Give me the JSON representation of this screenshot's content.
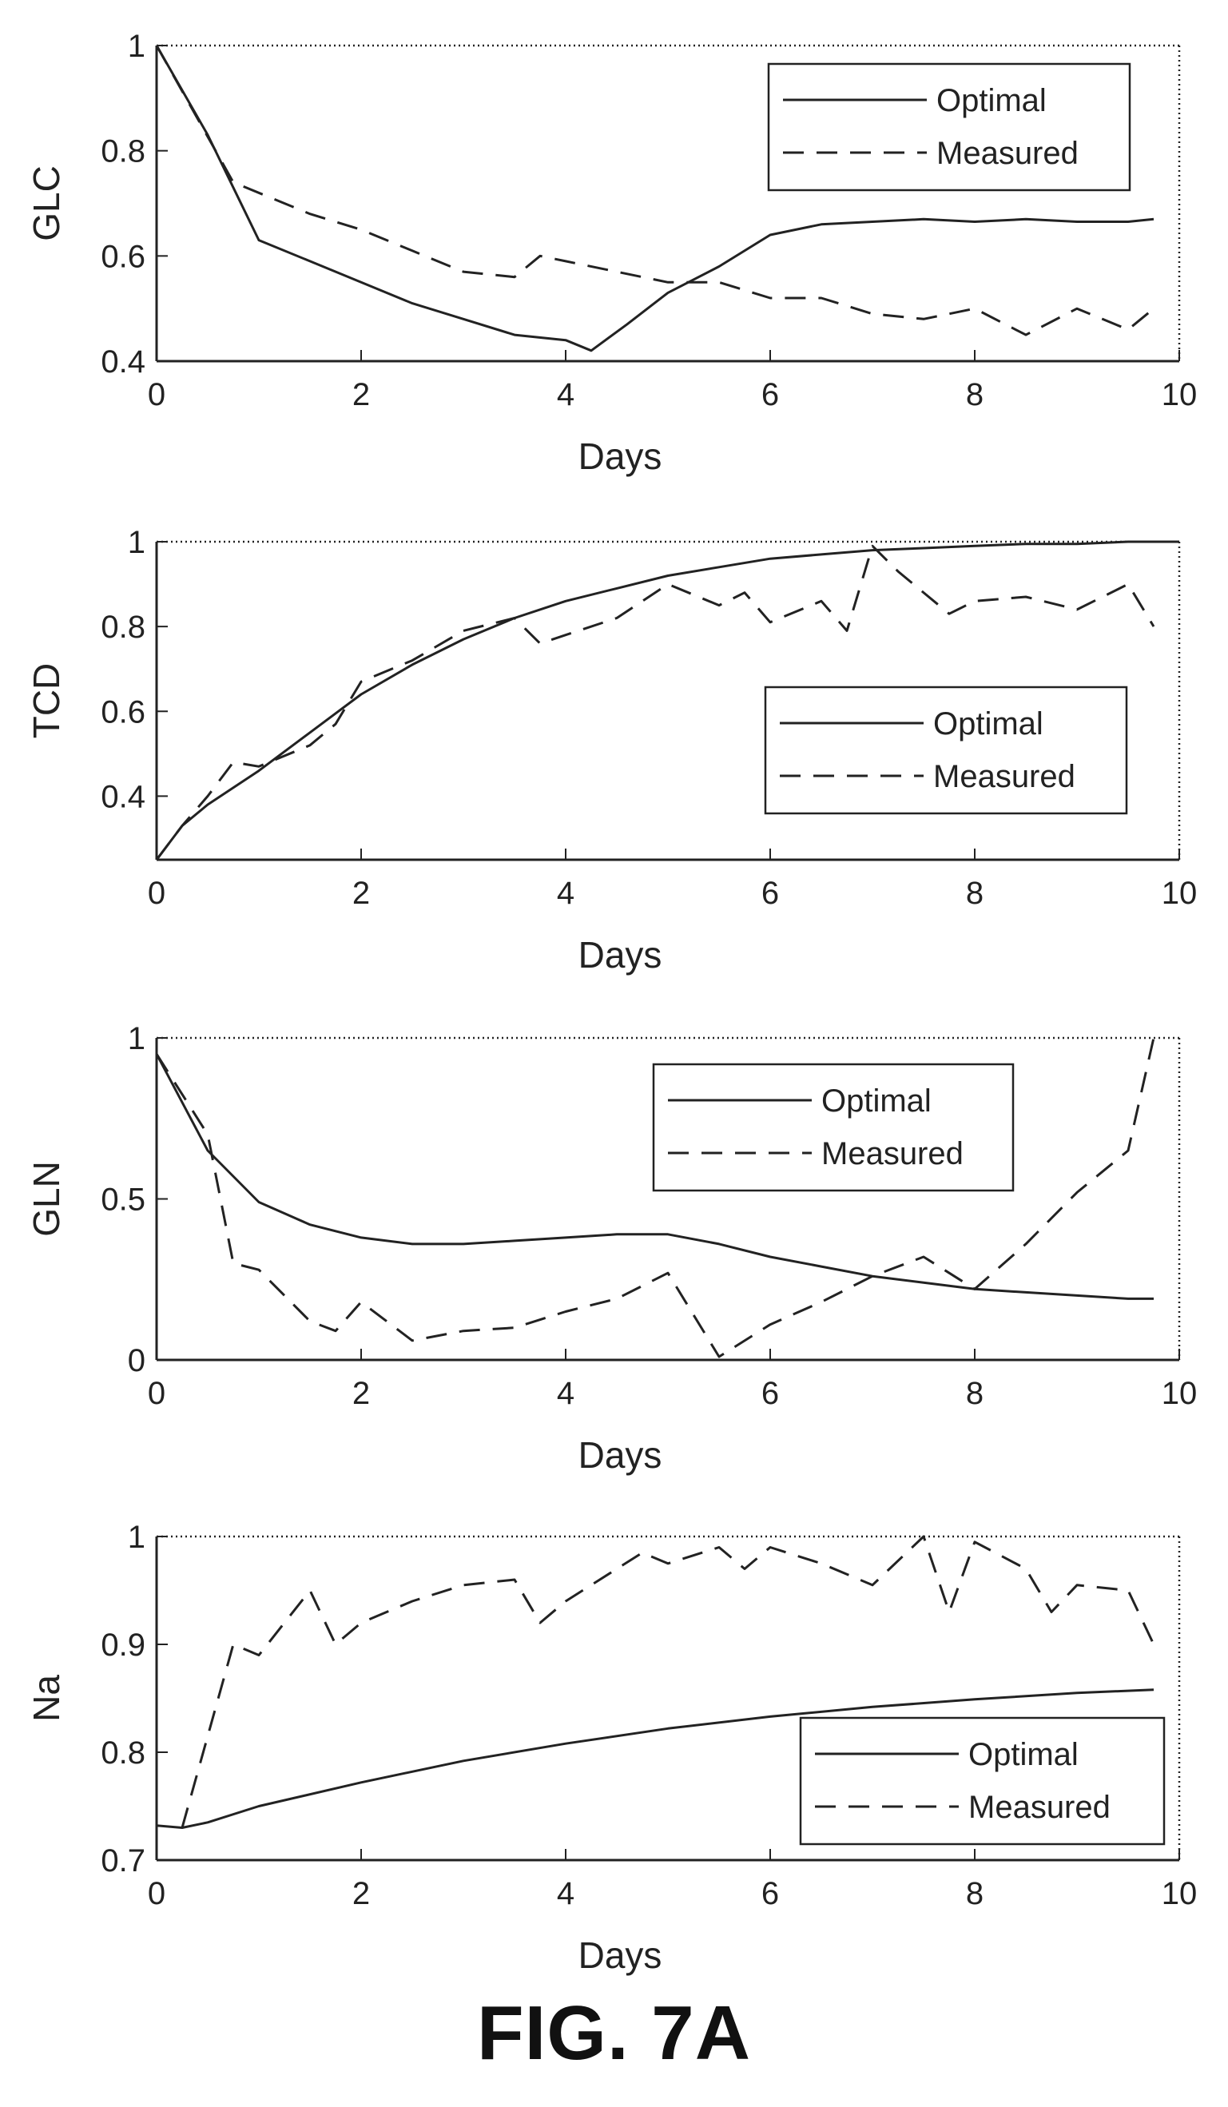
{
  "figure_label": "FIG. 7A",
  "colors": {
    "line": "#222222",
    "axes": "#222222",
    "background": "#ffffff"
  },
  "chart_data": [
    {
      "type": "line",
      "xlabel": "Days",
      "ylabel": "GLC",
      "xlim": [
        0,
        10
      ],
      "ylim": [
        0.4,
        1
      ],
      "xticks": [
        0,
        2,
        4,
        6,
        8,
        10
      ],
      "yticks": [
        0.4,
        0.6,
        0.8,
        1
      ],
      "ytick_labels": [
        "0.4",
        "0.6",
        "0.8",
        "1"
      ],
      "legend_position": "top-right",
      "series": [
        {
          "name": "Optimal",
          "style": "solid",
          "x": [
            0,
            0.5,
            1,
            1.5,
            2,
            2.5,
            3,
            3.5,
            4,
            4.25,
            4.6,
            5,
            5.5,
            6,
            6.5,
            7,
            7.5,
            8,
            8.5,
            9,
            9.5,
            9.75
          ],
          "y": [
            1,
            0.83,
            0.63,
            0.59,
            0.55,
            0.51,
            0.48,
            0.45,
            0.44,
            0.42,
            0.47,
            0.53,
            0.58,
            0.64,
            0.66,
            0.665,
            0.67,
            0.665,
            0.67,
            0.665,
            0.665,
            0.67
          ]
        },
        {
          "name": "Measured",
          "style": "dashed",
          "x": [
            0,
            0.75,
            1.5,
            2,
            2.5,
            3,
            3.5,
            3.75,
            4,
            4.5,
            5,
            5.5,
            6,
            6.5,
            7,
            7.5,
            8,
            8.5,
            9,
            9.5,
            9.75
          ],
          "y": [
            1,
            0.74,
            0.68,
            0.65,
            0.61,
            0.57,
            0.56,
            0.6,
            0.59,
            0.57,
            0.55,
            0.55,
            0.52,
            0.52,
            0.49,
            0.48,
            0.5,
            0.45,
            0.5,
            0.46,
            0.5
          ]
        }
      ]
    },
    {
      "type": "line",
      "xlabel": "Days",
      "ylabel": "TCD",
      "xlim": [
        0,
        10
      ],
      "ylim": [
        0.25,
        1
      ],
      "xticks": [
        0,
        2,
        4,
        6,
        8,
        10
      ],
      "yticks": [
        0.4,
        0.6,
        0.8,
        1
      ],
      "ytick_labels": [
        "0.4",
        "0.6",
        "0.8",
        "1"
      ],
      "legend_position": "middle-right",
      "series": [
        {
          "name": "Optimal",
          "style": "solid",
          "x": [
            0,
            0.25,
            0.5,
            1,
            1.5,
            2,
            2.5,
            3,
            3.5,
            4,
            4.5,
            5,
            5.5,
            6,
            6.5,
            7,
            7.5,
            8,
            8.5,
            9,
            9.5,
            10
          ],
          "y": [
            0.25,
            0.33,
            0.38,
            0.46,
            0.55,
            0.64,
            0.71,
            0.77,
            0.82,
            0.86,
            0.89,
            0.92,
            0.94,
            0.96,
            0.97,
            0.98,
            0.985,
            0.99,
            0.995,
            0.995,
            1,
            1
          ]
        },
        {
          "name": "Measured",
          "style": "dashed",
          "x": [
            0,
            0.25,
            0.5,
            0.75,
            1,
            1.5,
            1.75,
            2,
            2.5,
            3,
            3.5,
            3.75,
            4,
            4.5,
            5,
            5.5,
            5.75,
            6,
            6.5,
            6.75,
            7,
            7.25,
            7.75,
            8,
            8.5,
            9,
            9.5,
            9.75
          ],
          "y": [
            0.25,
            0.33,
            0.4,
            0.48,
            0.47,
            0.52,
            0.57,
            0.67,
            0.72,
            0.79,
            0.82,
            0.76,
            0.78,
            0.82,
            0.9,
            0.85,
            0.88,
            0.81,
            0.86,
            0.79,
            0.99,
            0.93,
            0.83,
            0.86,
            0.87,
            0.84,
            0.9,
            0.8
          ]
        }
      ]
    },
    {
      "type": "line",
      "xlabel": "Days",
      "ylabel": "GLN",
      "xlim": [
        0,
        10
      ],
      "ylim": [
        0,
        1
      ],
      "xticks": [
        0,
        2,
        4,
        6,
        8,
        10
      ],
      "yticks": [
        0,
        0.5,
        1
      ],
      "ytick_labels": [
        "0",
        "0.5",
        "1"
      ],
      "legend_position": "top-right",
      "series": [
        {
          "name": "Optimal",
          "style": "solid",
          "x": [
            0,
            0.5,
            1,
            1.5,
            2,
            2.5,
            3,
            3.5,
            4,
            4.5,
            5,
            5.5,
            6,
            6.5,
            7,
            7.5,
            8,
            8.5,
            9,
            9.5,
            9.75
          ],
          "y": [
            0.95,
            0.65,
            0.49,
            0.42,
            0.38,
            0.36,
            0.36,
            0.37,
            0.38,
            0.39,
            0.39,
            0.36,
            0.32,
            0.29,
            0.26,
            0.24,
            0.22,
            0.21,
            0.2,
            0.19,
            0.19
          ]
        },
        {
          "name": "Measured",
          "style": "dashed",
          "x": [
            0,
            0.5,
            0.75,
            1,
            1.5,
            1.75,
            2,
            2.5,
            3,
            3.5,
            4,
            4.5,
            5,
            5.5,
            6,
            6.5,
            7,
            7.5,
            8,
            8.5,
            9,
            9.5,
            9.75
          ],
          "y": [
            0.95,
            0.7,
            0.3,
            0.28,
            0.12,
            0.09,
            0.18,
            0.06,
            0.09,
            0.1,
            0.15,
            0.19,
            0.27,
            0.01,
            0.11,
            0.18,
            0.26,
            0.32,
            0.22,
            0.36,
            0.52,
            0.65,
            1
          ]
        }
      ]
    },
    {
      "type": "line",
      "xlabel": "Days",
      "ylabel": "Na",
      "xlim": [
        0,
        10
      ],
      "ylim": [
        0.7,
        1
      ],
      "xticks": [
        0,
        2,
        4,
        6,
        8,
        10
      ],
      "yticks": [
        0.7,
        0.8,
        0.9,
        1
      ],
      "ytick_labels": [
        "0.7",
        "0.8",
        "0.9",
        "1"
      ],
      "legend_position": "bottom-right",
      "series": [
        {
          "name": "Optimal",
          "style": "solid",
          "x": [
            0,
            0.25,
            0.5,
            1,
            2,
            3,
            4,
            5,
            6,
            7,
            8,
            9,
            9.75
          ],
          "y": [
            0.732,
            0.73,
            0.735,
            0.75,
            0.772,
            0.792,
            0.808,
            0.822,
            0.833,
            0.842,
            0.849,
            0.855,
            0.858
          ]
        },
        {
          "name": "Measured",
          "style": "dashed",
          "x": [
            0.25,
            0.75,
            1,
            1.5,
            1.75,
            2,
            2.5,
            3,
            3.5,
            3.75,
            4,
            4.5,
            4.75,
            5,
            5.5,
            5.75,
            6,
            6.5,
            7,
            7.5,
            7.75,
            8,
            8.5,
            8.75,
            9,
            9.5,
            9.75
          ],
          "y": [
            0.73,
            0.9,
            0.89,
            0.95,
            0.9,
            0.92,
            0.94,
            0.955,
            0.96,
            0.92,
            0.94,
            0.97,
            0.985,
            0.975,
            0.99,
            0.97,
            0.99,
            0.975,
            0.955,
            1,
            0.93,
            0.995,
            0.97,
            0.93,
            0.955,
            0.95,
            0.9
          ]
        }
      ]
    }
  ]
}
